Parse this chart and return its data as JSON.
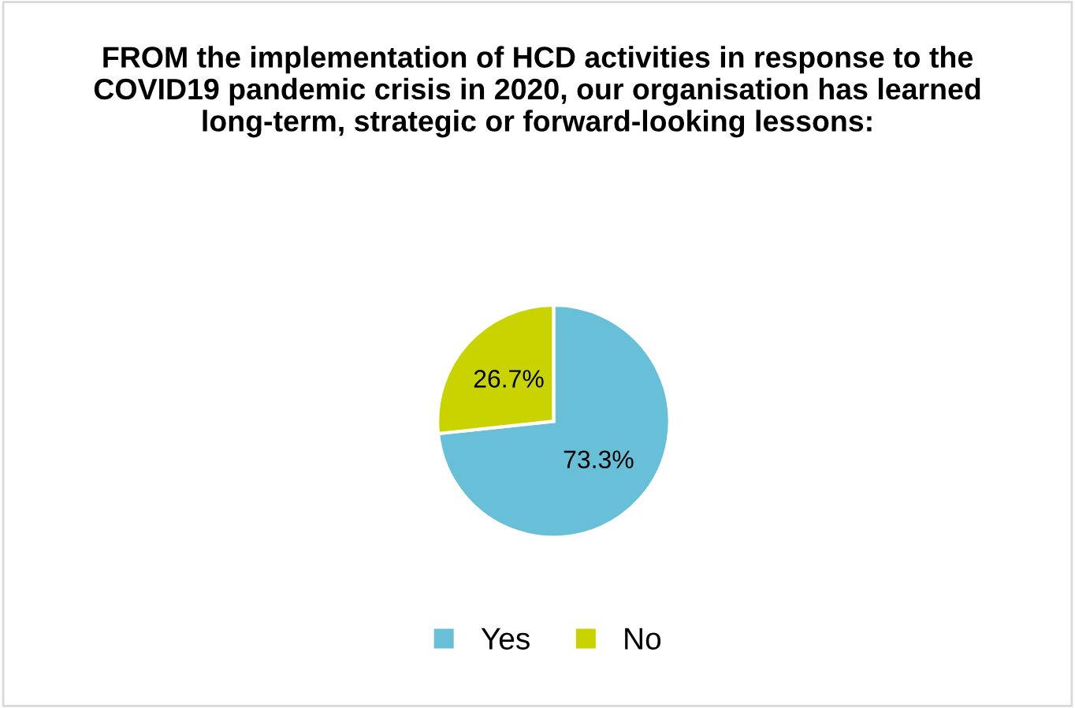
{
  "chart_data": {
    "type": "pie",
    "title": "FROM the implementation of HCD activities in response to the COVID19 pandemic crisis in 2020, our organisation has learned long-term, strategic or forward-looking lessons:",
    "categories": [
      "Yes",
      "No"
    ],
    "values": [
      73.3,
      26.7
    ],
    "colors": [
      "#67bfd8",
      "#c9d300"
    ],
    "value_labels": [
      "73.3%",
      "26.7%"
    ],
    "legend": "bottom"
  }
}
